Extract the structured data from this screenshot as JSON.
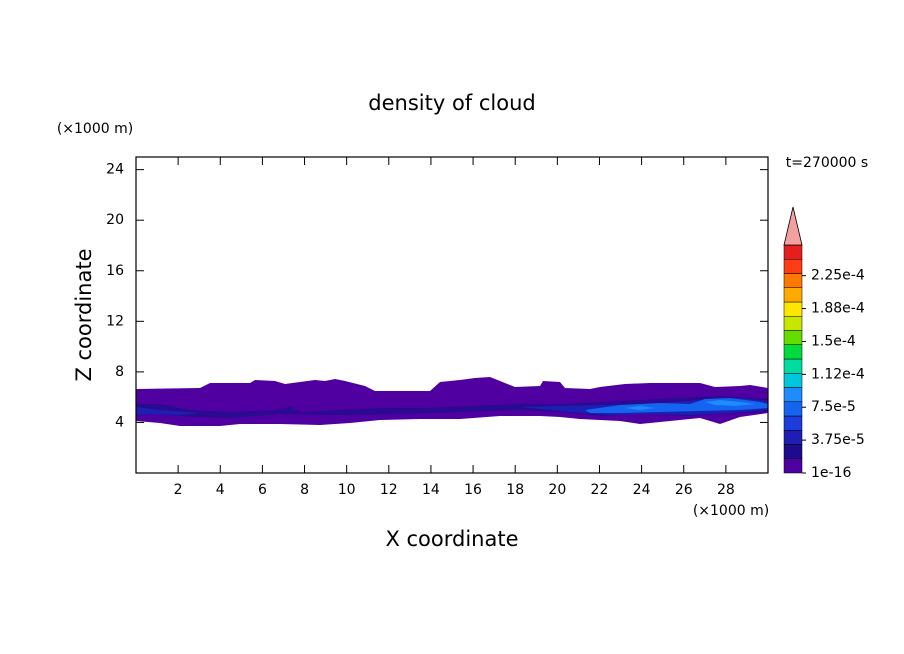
{
  "chart_data": {
    "type": "contour",
    "title": "density of cloud",
    "x_label": "X coordinate",
    "y_label": "Z coordinate",
    "x_unit": "(×1000 m)",
    "y_unit": "(×1000 m)",
    "time_label": "t=270000 s",
    "xlim": [
      0,
      30
    ],
    "ylim": [
      0,
      25
    ],
    "xticks": [
      2,
      4,
      6,
      8,
      10,
      12,
      14,
      16,
      18,
      20,
      22,
      24,
      26,
      28
    ],
    "yticks": [
      4,
      8,
      12,
      16,
      20,
      24
    ],
    "clim": [
      0,
      0.00026
    ],
    "colorbar_ticks": [
      1e-16,
      {
        "value": 3.75e-05,
        "label": "3.75e-5"
      },
      {
        "value": 7.5e-05,
        "label": "7.5e-5"
      },
      {
        "value": 0.0001125,
        "label": "1.12e-4"
      },
      {
        "value": 0.00015,
        "label": "1.5e-4"
      },
      {
        "value": 0.0001875,
        "label": "1.88e-4"
      },
      {
        "value": 0.000225,
        "label": "2.25e-4"
      }
    ],
    "colorbar_colors": [
      "#5000a0",
      "#1e0a8c",
      "#1e1eb4",
      "#1e3cdc",
      "#1464f0",
      "#1e8cff",
      "#00c8dc",
      "#00dca0",
      "#00dc3c",
      "#64dc00",
      "#c8e600",
      "#ffe600",
      "#ffaa00",
      "#ff7800",
      "#ff3c14",
      "#e61e1e"
    ],
    "over_color": "#f4a0a0"
  }
}
